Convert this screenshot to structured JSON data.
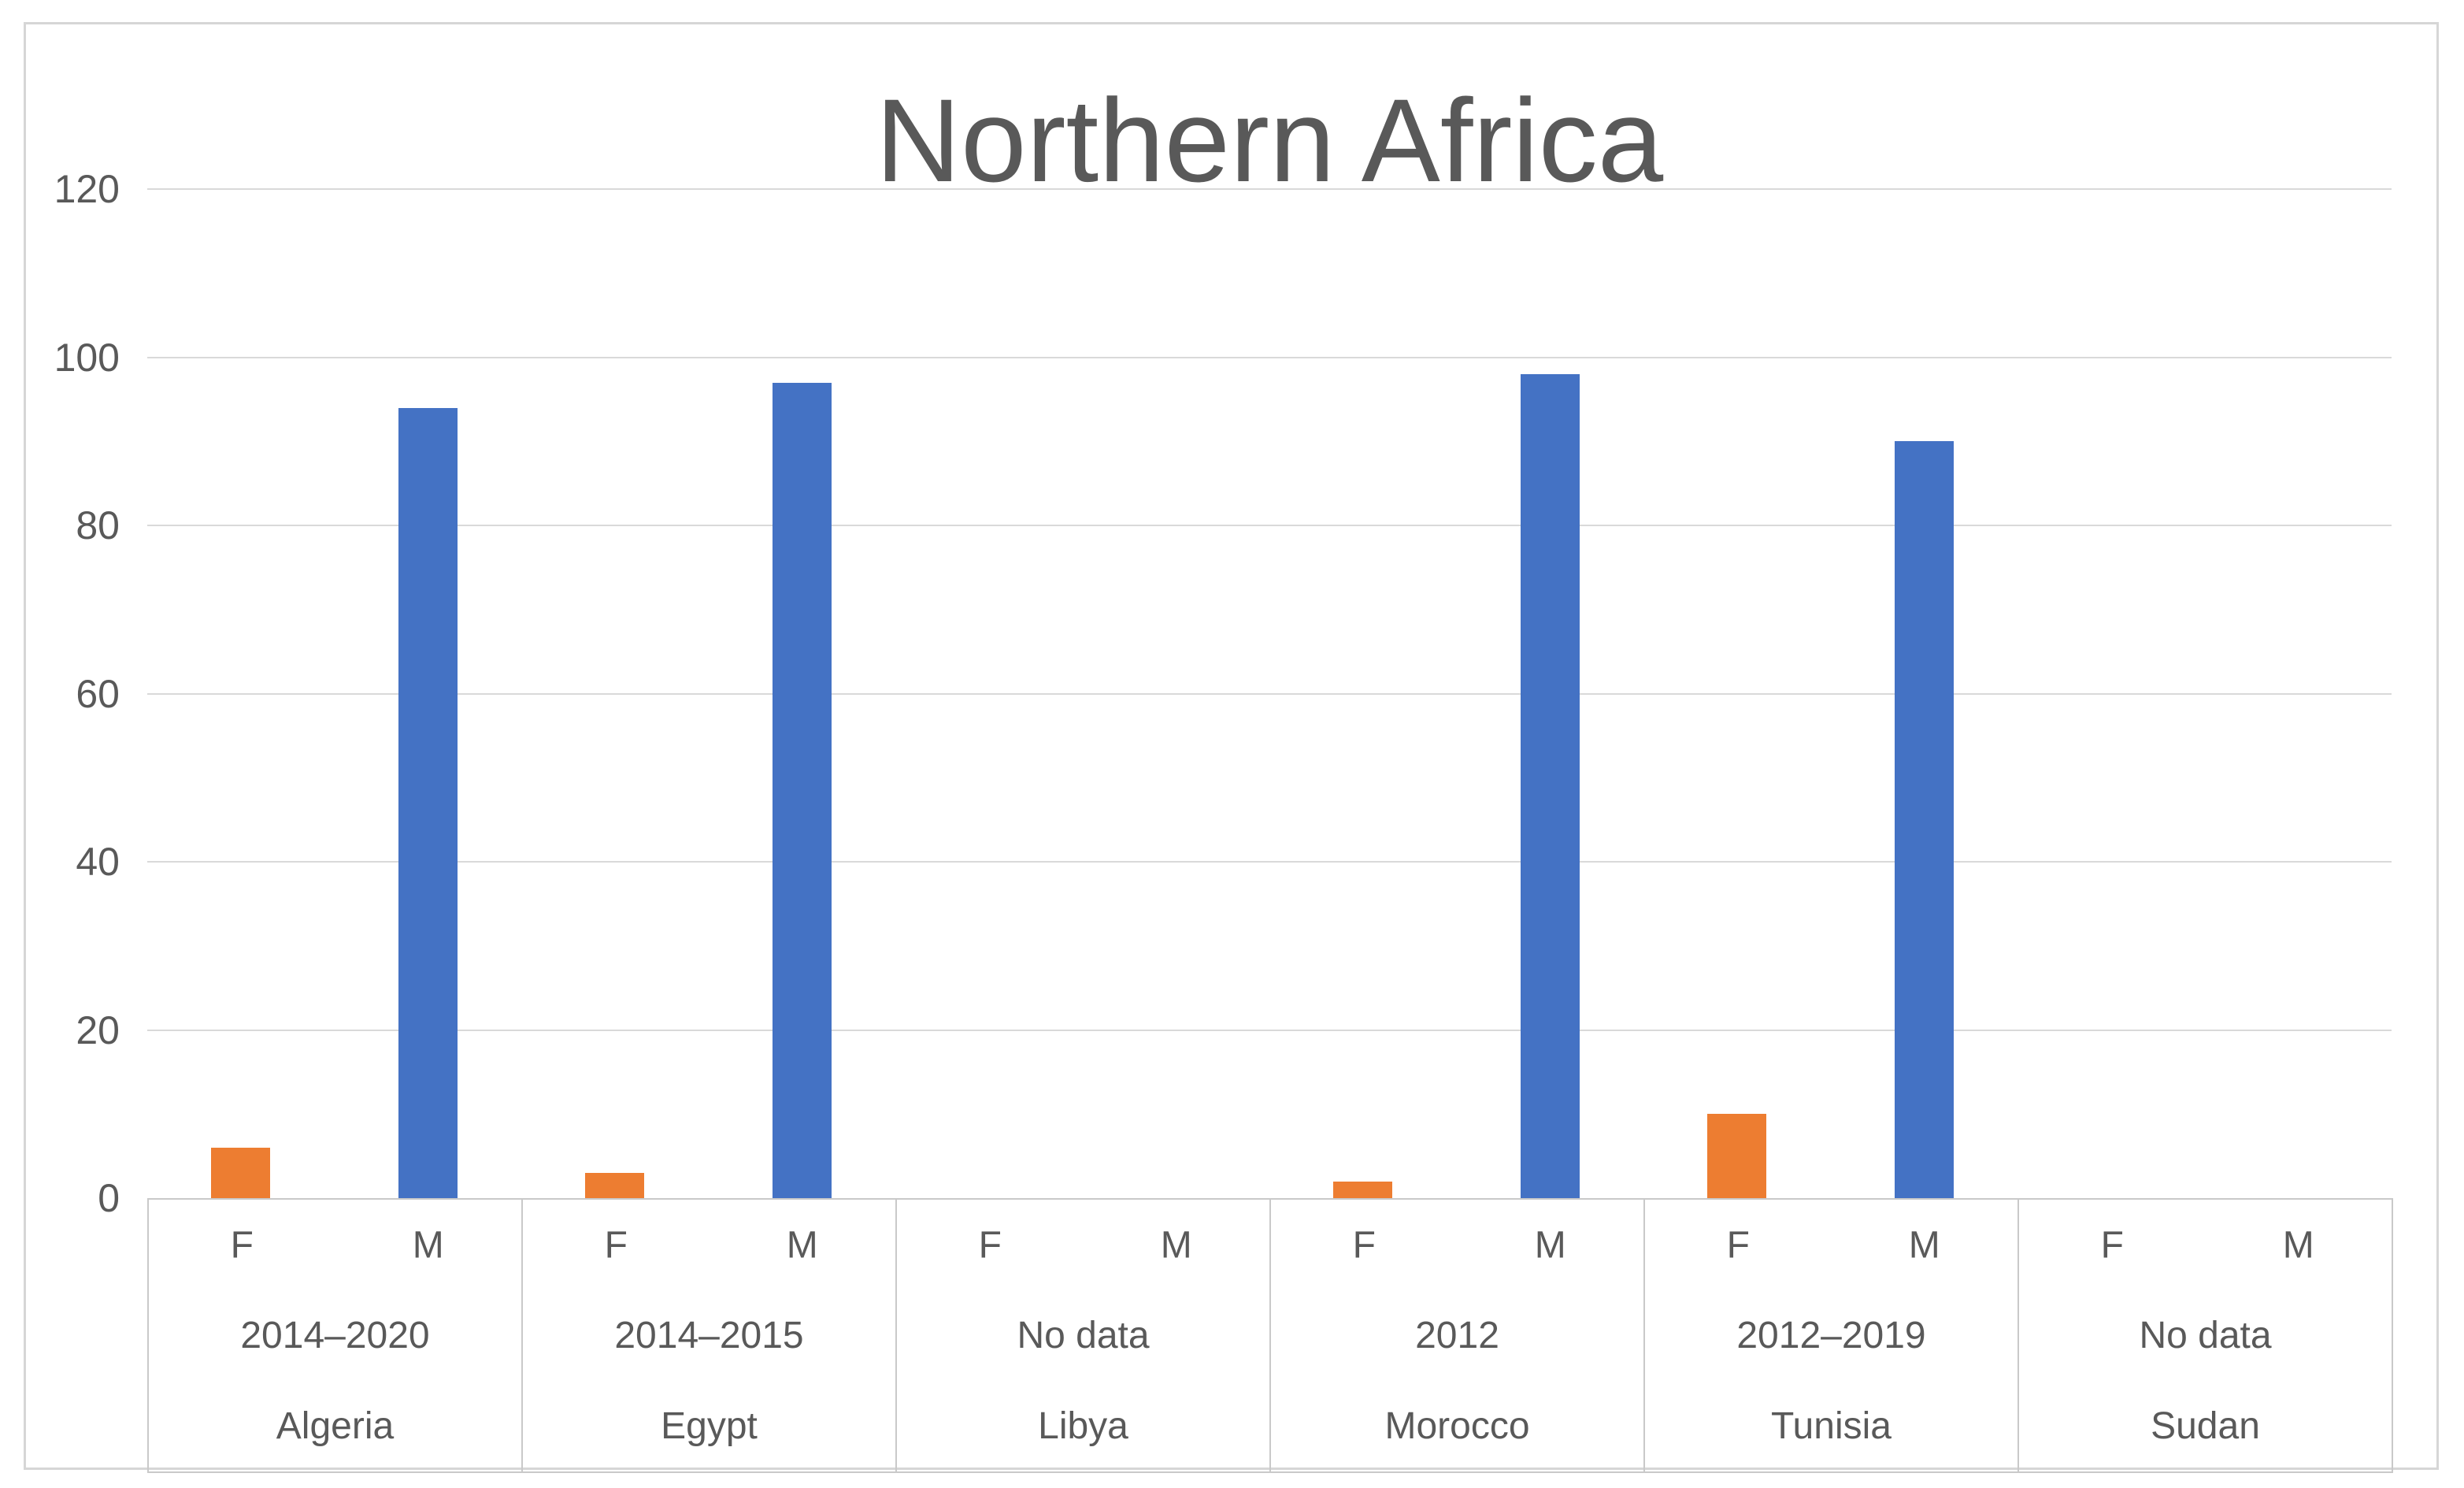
{
  "chart_data": {
    "type": "bar",
    "title": "Northern Africa",
    "xlabel": "",
    "ylabel": "",
    "ylim": [
      0,
      120
    ],
    "y_ticks": [
      0,
      20,
      40,
      60,
      80,
      100,
      120
    ],
    "grid": true,
    "legend": "none",
    "series_labels": [
      "F",
      "M"
    ],
    "categories": [
      "Algeria",
      "Egypt",
      "Libya",
      "Morocco",
      "Tunisia",
      "Sudan"
    ],
    "periods": [
      "2014–2020",
      "2014–2015",
      "No data",
      "2012",
      "2012–2019",
      "No data"
    ],
    "series": [
      {
        "name": "F",
        "values": [
          6,
          3,
          null,
          2,
          10,
          null
        ]
      },
      {
        "name": "M",
        "values": [
          94,
          97,
          null,
          98,
          90,
          null
        ]
      }
    ],
    "colors": {
      "F": "#ED7D31",
      "M": "#4472C4",
      "gridline": "#d9d9d9",
      "axis_line": "#c9c9c9",
      "text": "#595959"
    }
  }
}
